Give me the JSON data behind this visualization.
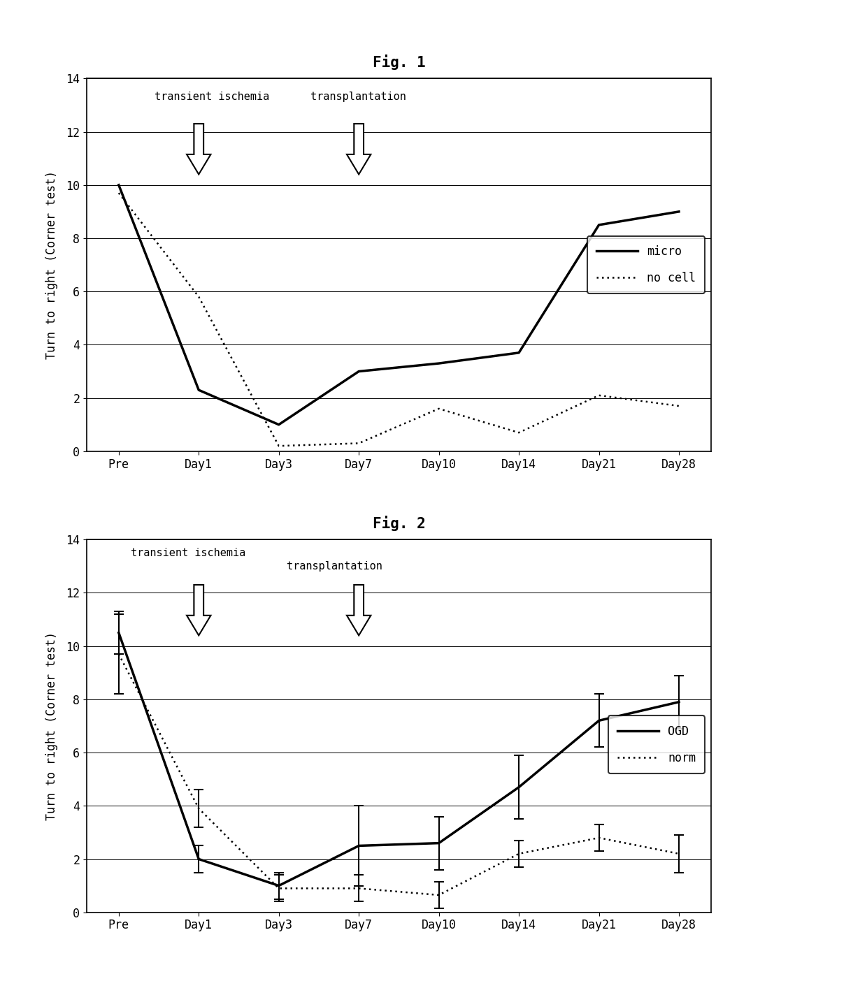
{
  "fig1_title": "Fig. 1",
  "fig2_title": "Fig. 2",
  "ylabel": "Turn to right (Corner test)",
  "x_labels": [
    "Pre",
    "Day1",
    "Day3",
    "Day7",
    "Day10",
    "Day14",
    "Day21",
    "Day28"
  ],
  "x_values": [
    0,
    1,
    2,
    3,
    4,
    5,
    6,
    7
  ],
  "ylim": [
    0,
    14
  ],
  "yticks": [
    0,
    2,
    4,
    6,
    8,
    10,
    12,
    14
  ],
  "fig1_micro_y": [
    10.0,
    2.3,
    1.0,
    3.0,
    3.3,
    3.7,
    8.5,
    9.0
  ],
  "fig1_nocell_y": [
    9.7,
    5.8,
    0.2,
    0.3,
    1.6,
    0.7,
    2.1,
    1.7
  ],
  "fig2_OGD_y": [
    10.5,
    2.0,
    1.0,
    2.5,
    2.6,
    4.7,
    7.2,
    7.9
  ],
  "fig2_OGD_yerr": [
    0.8,
    0.5,
    0.5,
    1.5,
    1.0,
    1.2,
    1.0,
    1.0
  ],
  "fig2_norm_y": [
    9.7,
    3.9,
    0.9,
    0.9,
    0.65,
    2.2,
    2.8,
    2.2
  ],
  "fig2_norm_yerr": [
    1.5,
    0.7,
    0.5,
    0.5,
    0.5,
    0.5,
    0.5,
    0.7
  ],
  "fig1_label1": "transient ischemia",
  "fig1_label2": "transplantation",
  "fig2_label1": "transient ischemia",
  "fig2_label2": "transplantation",
  "bg_color": "white",
  "fontfamily": "monospace"
}
